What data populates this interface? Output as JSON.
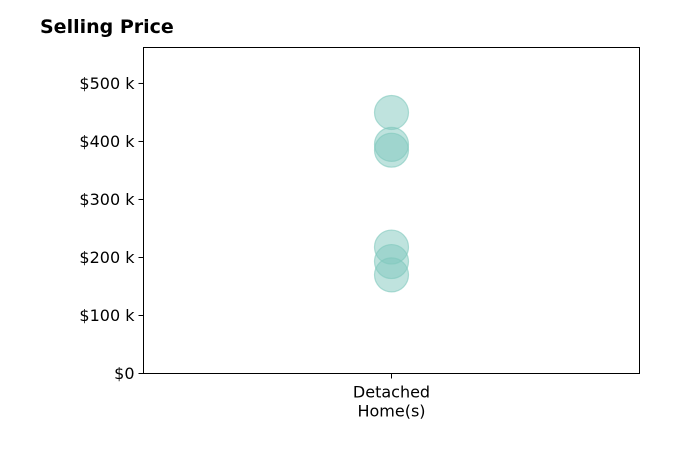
{
  "chart_data": {
    "type": "scatter",
    "title": "Selling Price",
    "xlabel": "",
    "ylabel": "",
    "categories": [
      "Detached\nHome(s)"
    ],
    "y_ticks": [
      {
        "value": 0,
        "label": "$0"
      },
      {
        "value": 100000,
        "label": "$100 k"
      },
      {
        "value": 200000,
        "label": "$200 k"
      },
      {
        "value": 300000,
        "label": "$300 k"
      },
      {
        "value": 400000,
        "label": "$400 k"
      },
      {
        "value": 500000,
        "label": "$500 k"
      }
    ],
    "ylim": [
      0,
      562000
    ],
    "grid": false,
    "series": [
      {
        "category": "Detached\nHome(s)",
        "values": [
          450000,
          395000,
          385000,
          218000,
          193000,
          170000
        ],
        "color": "#7fc8bd"
      }
    ]
  }
}
